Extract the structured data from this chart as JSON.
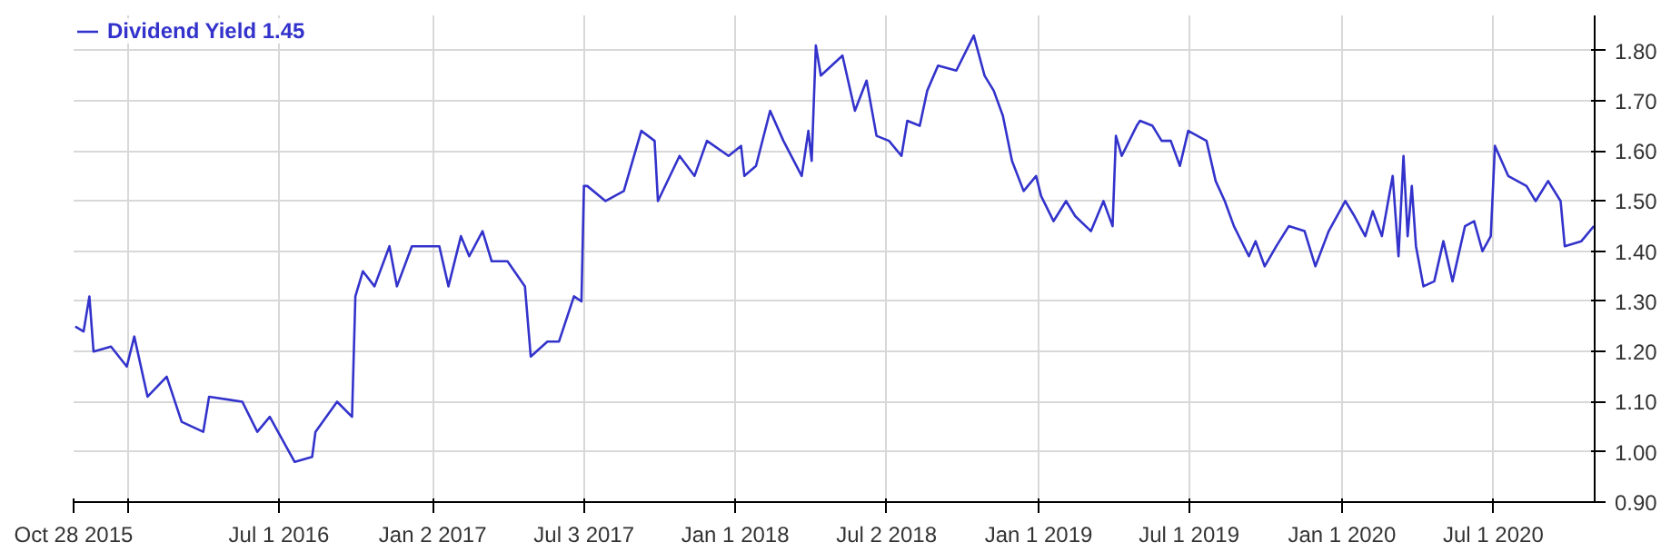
{
  "chart_data": {
    "type": "line",
    "legend": "top left",
    "grid": true,
    "marker": "none",
    "line_style": "solid",
    "xlim": [
      "2015-10-28",
      "2020-10-31"
    ],
    "xticks": [
      {
        "value": "2015-10-28",
        "label": "Oct 28 2015"
      },
      {
        "value": "2016-01-01",
        "label": null
      },
      {
        "value": "2016-07-01",
        "label": "Jul 1 2016"
      },
      {
        "value": "2017-01-02",
        "label": "Jan 2 2017"
      },
      {
        "value": "2017-07-03",
        "label": "Jul 3 2017"
      },
      {
        "value": "2018-01-01",
        "label": "Jan 1 2018"
      },
      {
        "value": "2018-07-02",
        "label": "Jul 2 2018"
      },
      {
        "value": "2019-01-01",
        "label": "Jan 1 2019"
      },
      {
        "value": "2019-07-01",
        "label": "Jul 1 2019"
      },
      {
        "value": "2020-01-01",
        "label": "Jan 1 2020"
      },
      {
        "value": "2020-07-01",
        "label": "Jul 1 2020"
      }
    ],
    "ylim": [
      0.9,
      1.87
    ],
    "yticks": [
      {
        "value": 0.9,
        "label": "0.90"
      },
      {
        "value": 1.0,
        "label": "1.00"
      },
      {
        "value": 1.1,
        "label": "1.10"
      },
      {
        "value": 1.2,
        "label": "1.20"
      },
      {
        "value": 1.3,
        "label": "1.30"
      },
      {
        "value": 1.4,
        "label": "1.40"
      },
      {
        "value": 1.5,
        "label": "1.50"
      },
      {
        "value": 1.6,
        "label": "1.60"
      },
      {
        "value": 1.7,
        "label": "1.70"
      },
      {
        "value": 1.8,
        "label": "1.80"
      }
    ],
    "series": [
      {
        "name": "Dividend Yield 1.45",
        "color": "#3333cc",
        "x": [
          "2015-10-30",
          "2015-11-09",
          "2015-11-16",
          "2015-11-21",
          "2015-12-12",
          "2015-12-31",
          "2016-01-09",
          "2016-01-25",
          "2016-02-17",
          "2016-03-06",
          "2016-04-01",
          "2016-04-08",
          "2016-05-18",
          "2016-06-05",
          "2016-06-20",
          "2016-07-20",
          "2016-08-10",
          "2016-08-14",
          "2016-09-09",
          "2016-09-27",
          "2016-10-01",
          "2016-10-10",
          "2016-10-24",
          "2016-11-11",
          "2016-11-20",
          "2016-12-08",
          "2017-01-10",
          "2017-01-21",
          "2017-02-05",
          "2017-02-15",
          "2017-03-03",
          "2017-03-14",
          "2017-04-02",
          "2017-04-23",
          "2017-04-30",
          "2017-05-20",
          "2017-06-03",
          "2017-06-21",
          "2017-06-30",
          "2017-07-03",
          "2017-07-07",
          "2017-07-29",
          "2017-08-20",
          "2017-09-10",
          "2017-09-26",
          "2017-09-30",
          "2017-10-26",
          "2017-11-13",
          "2017-11-28",
          "2017-12-24",
          "2018-01-08",
          "2018-01-12",
          "2018-01-26",
          "2018-02-12",
          "2018-02-28",
          "2018-03-22",
          "2018-03-30",
          "2018-04-03",
          "2018-04-08",
          "2018-04-14",
          "2018-04-27",
          "2018-05-10",
          "2018-05-25",
          "2018-06-08",
          "2018-06-20",
          "2018-07-05",
          "2018-07-20",
          "2018-07-27",
          "2018-08-11",
          "2018-08-20",
          "2018-09-02",
          "2018-09-24",
          "2018-10-15",
          "2018-10-28",
          "2018-11-08",
          "2018-11-19",
          "2018-11-30",
          "2018-12-14",
          "2018-12-29",
          "2019-01-04",
          "2019-01-19",
          "2019-02-03",
          "2019-02-14",
          "2019-03-05",
          "2019-03-20",
          "2019-03-31",
          "2019-04-04",
          "2019-04-11",
          "2019-04-29",
          "2019-05-03",
          "2019-05-18",
          "2019-05-29",
          "2019-06-09",
          "2019-06-20",
          "2019-06-30",
          "2019-07-22",
          "2019-08-02",
          "2019-08-13",
          "2019-08-24",
          "2019-09-11",
          "2019-09-19",
          "2019-09-30",
          "2019-10-14",
          "2019-10-29",
          "2019-11-17",
          "2019-11-30",
          "2019-12-16",
          "2020-01-05",
          "2020-01-16",
          "2020-01-29",
          "2020-02-07",
          "2020-02-18",
          "2020-03-02",
          "2020-03-09",
          "2020-03-15",
          "2020-03-20",
          "2020-03-25",
          "2020-03-30",
          "2020-04-08",
          "2020-04-21",
          "2020-05-02",
          "2020-05-13",
          "2020-05-28",
          "2020-06-08",
          "2020-06-18",
          "2020-06-28",
          "2020-07-03",
          "2020-07-19",
          "2020-08-10",
          "2020-08-21",
          "2020-09-05",
          "2020-09-20",
          "2020-09-25",
          "2020-10-15",
          "2020-10-30"
        ],
        "values": [
          1.25,
          1.24,
          1.31,
          1.2,
          1.21,
          1.17,
          1.23,
          1.11,
          1.15,
          1.06,
          1.04,
          1.11,
          1.1,
          1.04,
          1.07,
          0.98,
          0.99,
          1.04,
          1.1,
          1.07,
          1.31,
          1.36,
          1.33,
          1.41,
          1.33,
          1.41,
          1.41,
          1.33,
          1.43,
          1.39,
          1.44,
          1.38,
          1.38,
          1.33,
          1.19,
          1.22,
          1.22,
          1.31,
          1.3,
          1.53,
          1.53,
          1.5,
          1.52,
          1.64,
          1.62,
          1.5,
          1.59,
          1.55,
          1.62,
          1.59,
          1.61,
          1.55,
          1.57,
          1.68,
          1.62,
          1.55,
          1.64,
          1.58,
          1.81,
          1.75,
          1.77,
          1.79,
          1.68,
          1.74,
          1.63,
          1.62,
          1.59,
          1.66,
          1.65,
          1.72,
          1.77,
          1.76,
          1.83,
          1.75,
          1.72,
          1.67,
          1.58,
          1.52,
          1.55,
          1.51,
          1.46,
          1.5,
          1.47,
          1.44,
          1.5,
          1.45,
          1.63,
          1.59,
          1.65,
          1.66,
          1.65,
          1.62,
          1.62,
          1.57,
          1.64,
          1.62,
          1.54,
          1.5,
          1.45,
          1.39,
          1.42,
          1.37,
          1.41,
          1.45,
          1.44,
          1.37,
          1.44,
          1.5,
          1.47,
          1.43,
          1.48,
          1.43,
          1.55,
          1.39,
          1.59,
          1.43,
          1.53,
          1.41,
          1.33,
          1.34,
          1.42,
          1.34,
          1.45,
          1.46,
          1.4,
          1.43,
          1.61,
          1.55,
          1.53,
          1.5,
          1.54,
          1.5,
          1.41,
          1.42,
          1.45
        ]
      }
    ]
  }
}
